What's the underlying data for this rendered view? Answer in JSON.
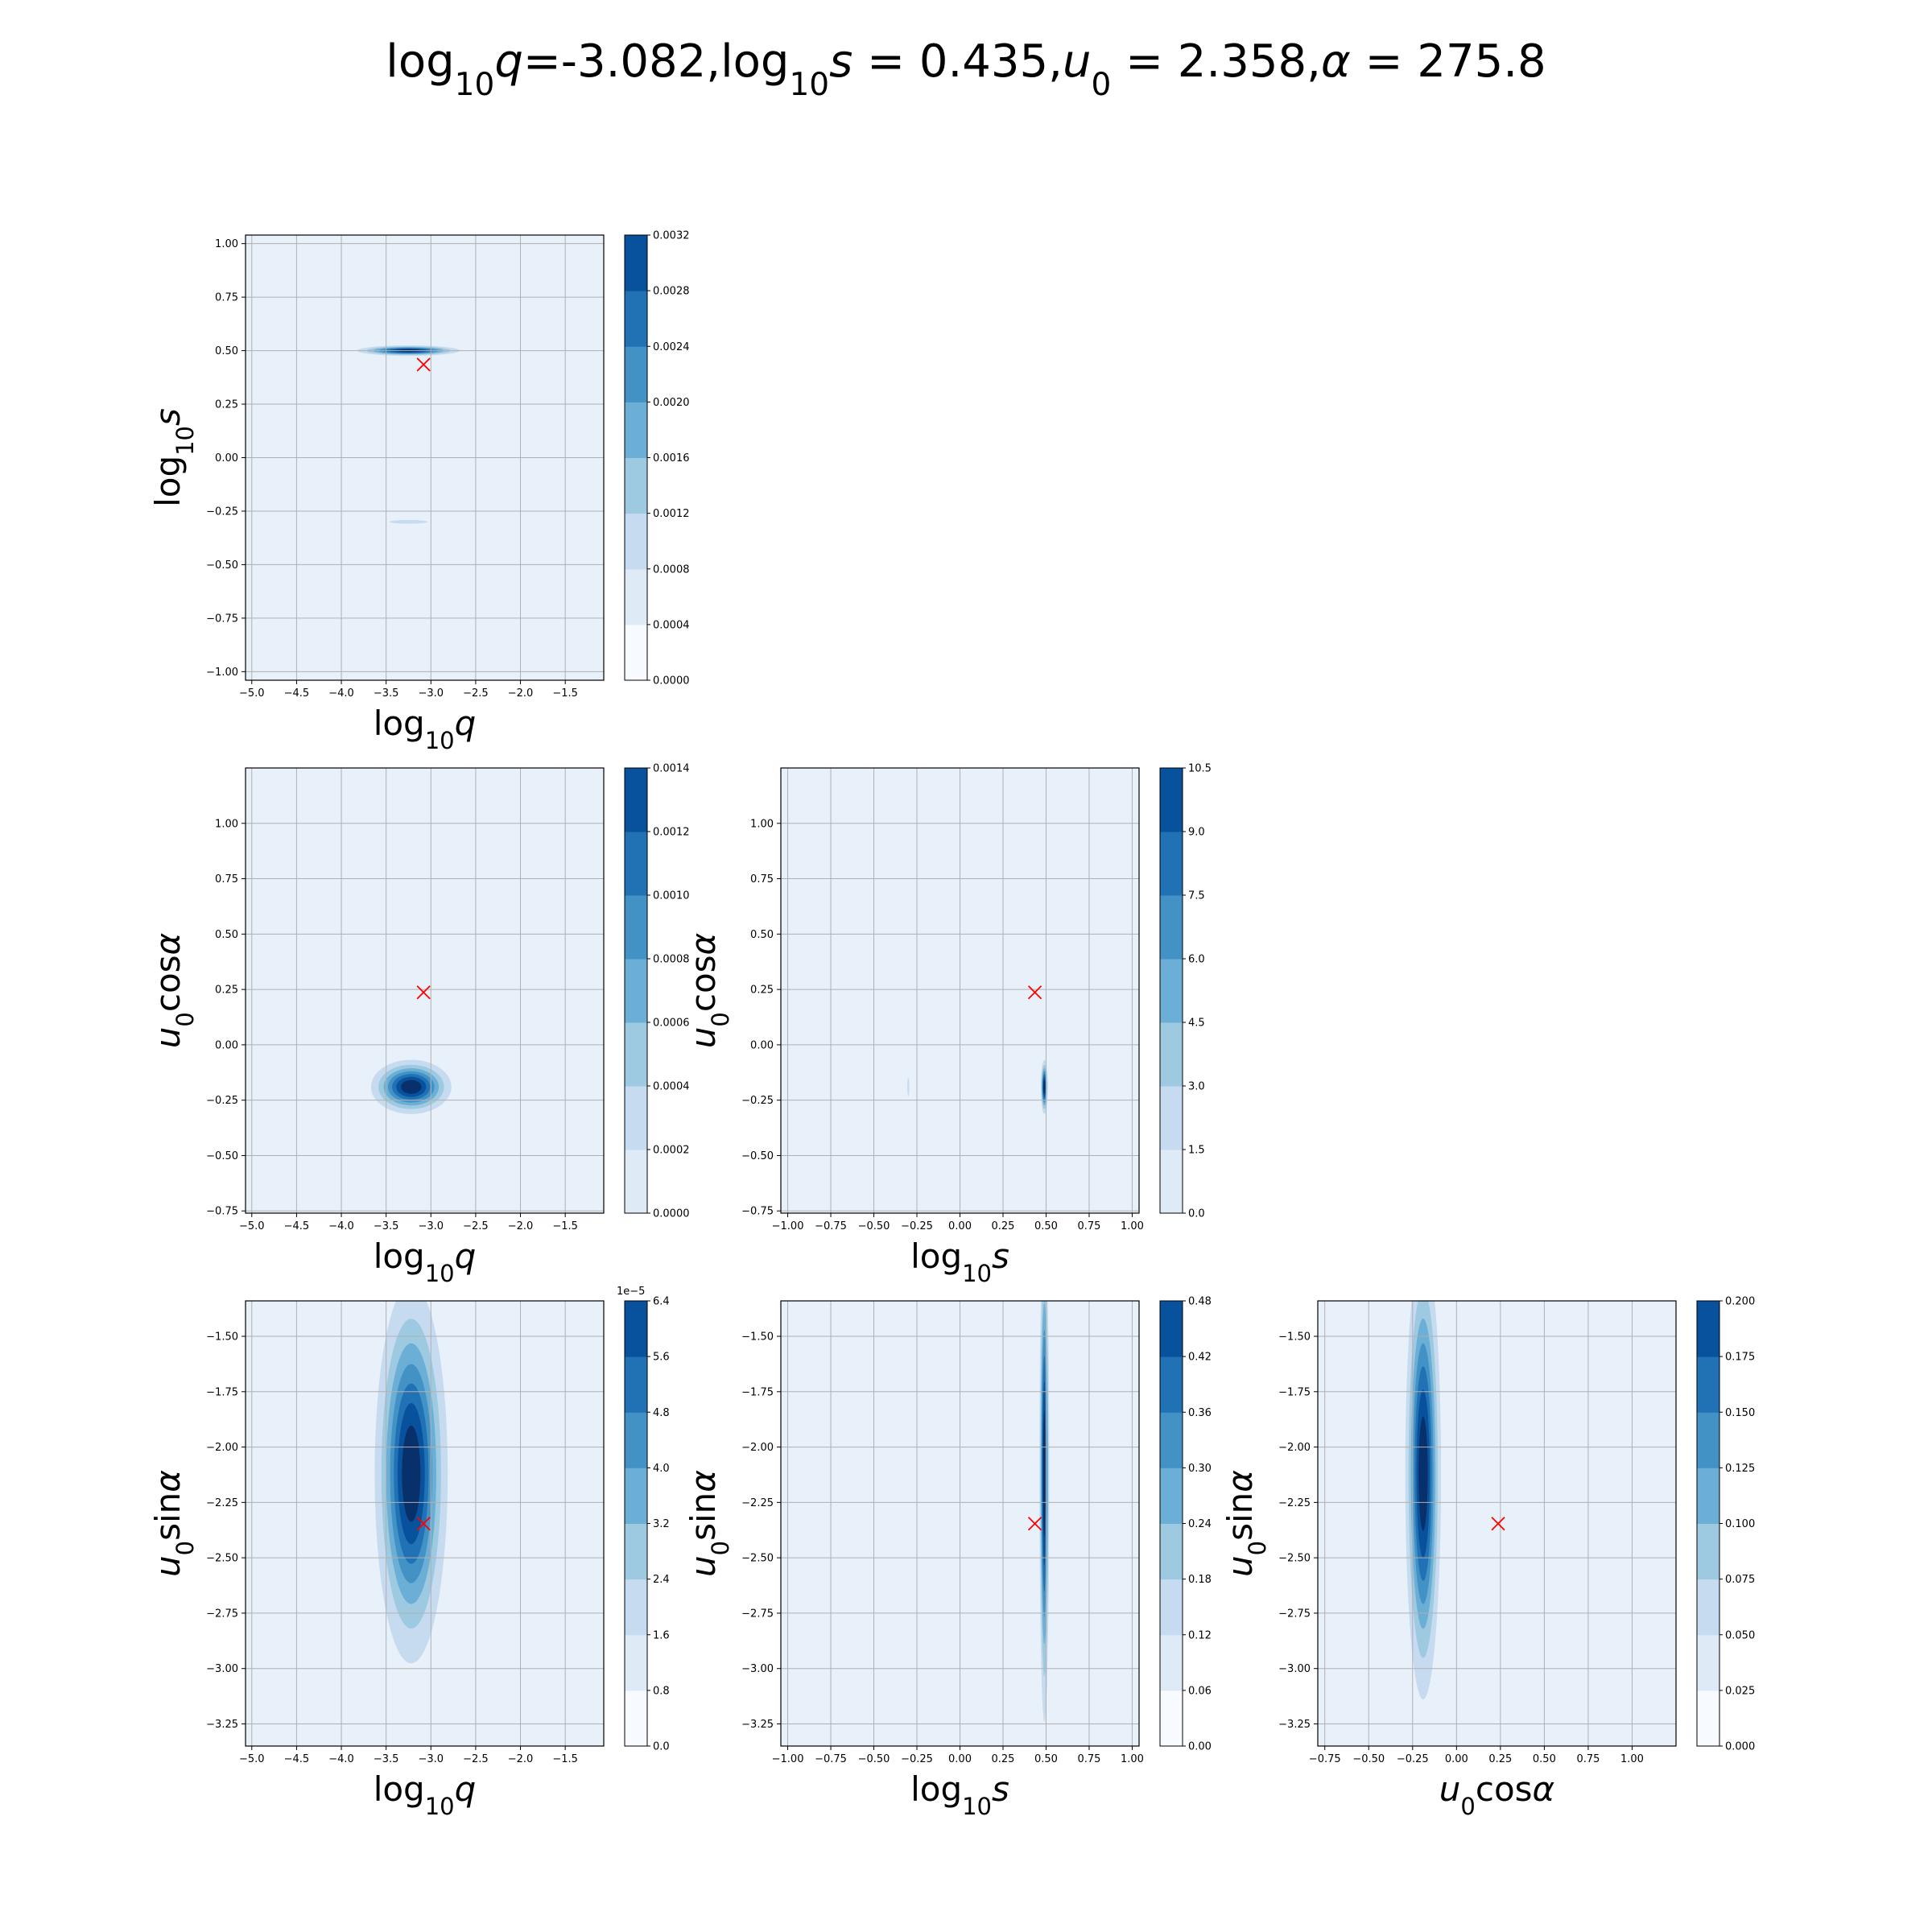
{
  "title": "log10q=-3.082,log10s = 0.435,u0 = 2.358,α = 275.8",
  "title_parts": [
    {
      "t": "log",
      "s": "n"
    },
    {
      "t": "10",
      "s": "sub"
    },
    {
      "t": "q",
      "s": "i"
    },
    {
      "t": "=-3.082,log",
      "s": "n"
    },
    {
      "t": "10",
      "s": "sub"
    },
    {
      "t": "s",
      "s": "i"
    },
    {
      "t": " = 0.435,",
      "s": "n"
    },
    {
      "t": "u",
      "s": "i"
    },
    {
      "t": "0",
      "s": "sub"
    },
    {
      "t": " = 2.358,",
      "s": "n"
    },
    {
      "t": "α",
      "s": "i"
    },
    {
      "t": " = 275.8",
      "s": "n"
    }
  ],
  "labels": {
    "log10q": [
      {
        "t": "log",
        "s": "n"
      },
      {
        "t": "10",
        "s": "sub"
      },
      {
        "t": "q",
        "s": "i"
      }
    ],
    "log10s": [
      {
        "t": "log",
        "s": "n"
      },
      {
        "t": "10",
        "s": "sub"
      },
      {
        "t": "s",
        "s": "i"
      }
    ],
    "u0cos": [
      {
        "t": "u",
        "s": "i"
      },
      {
        "t": "0",
        "s": "sub"
      },
      {
        "t": "cos",
        "s": "n"
      },
      {
        "t": "α",
        "s": "i"
      }
    ],
    "u0sin": [
      {
        "t": "u",
        "s": "i"
      },
      {
        "t": "0",
        "s": "sub"
      },
      {
        "t": "sin",
        "s": "n"
      },
      {
        "t": "α",
        "s": "i"
      }
    ]
  },
  "colors": {
    "levels": [
      "#f7fbff",
      "#deebf7",
      "#c6dbef",
      "#9ecae1",
      "#6baed6",
      "#4292c6",
      "#2171b5",
      "#08519c",
      "#08306b"
    ],
    "background_level": "#e8f1fa",
    "truth_marker": "#ff0000",
    "grid": "#b0b0b0"
  },
  "chart_data": [
    {
      "type": "contour",
      "panel": "log10q-vs-log10s",
      "xlabel_key": "log10q",
      "ylabel_key": "log10s",
      "xlim": [
        -5.07,
        -1.07
      ],
      "ylim": [
        -1.04,
        1.04
      ],
      "xticks": [
        -5.0,
        -4.5,
        -4.0,
        -3.5,
        -3.0,
        -2.5,
        -2.0,
        -1.5
      ],
      "yticks": [
        -1.0,
        -0.75,
        -0.5,
        -0.25,
        0.0,
        0.25,
        0.5,
        0.75,
        1.0
      ],
      "xtick_labels": [
        "−5.0",
        "−4.5",
        "−4.0",
        "−3.5",
        "−3.0",
        "−2.5",
        "−2.0",
        "−1.5"
      ],
      "ytick_labels": [
        "−1.00",
        "−0.75",
        "−0.50",
        "−0.25",
        "0.00",
        "0.25",
        "0.50",
        "0.75",
        "1.00"
      ],
      "colorbar_ticks": [
        "0.0000",
        "0.0004",
        "0.0008",
        "0.0012",
        "0.0016",
        "0.0020",
        "0.0024",
        "0.0028",
        "0.0032"
      ],
      "colorbar_exponent": "",
      "blobs": [
        {
          "cx": -3.25,
          "cy": 0.5,
          "sx": 0.28,
          "sy": 0.012,
          "peak": 1.0
        },
        {
          "cx": -3.25,
          "cy": -0.3,
          "sx": 0.2,
          "sy": 0.008,
          "peak": 0.22
        }
      ],
      "truth": {
        "x": -3.082,
        "y": 0.435
      }
    },
    {
      "type": "contour",
      "panel": "log10q-vs-u0cos",
      "xlabel_key": "log10q",
      "ylabel_key": "u0cos",
      "xlim": [
        -5.07,
        -1.07
      ],
      "ylim": [
        -0.76,
        1.25
      ],
      "xticks": [
        -5.0,
        -4.5,
        -4.0,
        -3.5,
        -3.0,
        -2.5,
        -2.0,
        -1.5
      ],
      "yticks": [
        -0.75,
        -0.5,
        -0.25,
        0.0,
        0.25,
        0.5,
        0.75,
        1.0
      ],
      "xtick_labels": [
        "−5.0",
        "−4.5",
        "−4.0",
        "−3.5",
        "−3.0",
        "−2.5",
        "−2.0",
        "−1.5"
      ],
      "ytick_labels": [
        "−0.75",
        "−0.50",
        "−0.25",
        "0.00",
        "0.25",
        "0.50",
        "0.75",
        "1.00"
      ],
      "colorbar_ticks": [
        "0.0000",
        "0.0002",
        "0.0004",
        "0.0006",
        "0.0008",
        "0.0010",
        "0.0012",
        "0.0014"
      ],
      "colorbar_exponent": "",
      "blobs": [
        {
          "cx": -3.22,
          "cy": -0.19,
          "sx": 0.22,
          "sy": 0.06,
          "peak": 1.0
        }
      ],
      "truth": {
        "x": -3.082,
        "y": 0.237
      }
    },
    {
      "type": "contour",
      "panel": "log10s-vs-u0cos",
      "xlabel_key": "log10s",
      "ylabel_key": "u0cos",
      "xlim": [
        -1.04,
        1.04
      ],
      "ylim": [
        -0.76,
        1.25
      ],
      "xticks": [
        -1.0,
        -0.75,
        -0.5,
        -0.25,
        0.0,
        0.25,
        0.5,
        0.75,
        1.0
      ],
      "yticks": [
        -0.75,
        -0.5,
        -0.25,
        0.0,
        0.25,
        0.5,
        0.75,
        1.0
      ],
      "xtick_labels": [
        "−1.00",
        "−0.75",
        "−0.50",
        "−0.25",
        "0.00",
        "0.25",
        "0.50",
        "0.75",
        "1.00"
      ],
      "ytick_labels": [
        "−0.75",
        "−0.50",
        "−0.25",
        "0.00",
        "0.25",
        "0.50",
        "0.75",
        "1.00"
      ],
      "colorbar_ticks": [
        "0.0",
        "1.5",
        "3.0",
        "4.5",
        "6.0",
        "7.5",
        "9.0",
        "10.5"
      ],
      "colorbar_exponent": "",
      "blobs": [
        {
          "cx": 0.49,
          "cy": -0.19,
          "sx": 0.01,
          "sy": 0.06,
          "peak": 1.0
        },
        {
          "cx": -0.3,
          "cy": -0.19,
          "sx": 0.006,
          "sy": 0.05,
          "peak": 0.18
        }
      ],
      "truth": {
        "x": 0.435,
        "y": 0.237
      }
    },
    {
      "type": "contour",
      "panel": "log10q-vs-u0sin",
      "xlabel_key": "log10q",
      "ylabel_key": "u0sin",
      "xlim": [
        -5.07,
        -1.07
      ],
      "ylim": [
        -3.35,
        -1.34
      ],
      "xticks": [
        -5.0,
        -4.5,
        -4.0,
        -3.5,
        -3.0,
        -2.5,
        -2.0,
        -1.5
      ],
      "yticks": [
        -3.25,
        -3.0,
        -2.75,
        -2.5,
        -2.25,
        -2.0,
        -1.75,
        -1.5
      ],
      "xtick_labels": [
        "−5.0",
        "−4.5",
        "−4.0",
        "−3.5",
        "−3.0",
        "−2.5",
        "−2.0",
        "−1.5"
      ],
      "ytick_labels": [
        "−3.25",
        "−3.00",
        "−2.75",
        "−2.50",
        "−2.25",
        "−2.00",
        "−1.75",
        "−1.50"
      ],
      "colorbar_ticks": [
        "0.0",
        "0.8",
        "1.6",
        "2.4",
        "3.2",
        "4.0",
        "4.8",
        "5.6",
        "6.4"
      ],
      "colorbar_exponent": "1e−5",
      "blobs": [
        {
          "cx": -3.22,
          "cy": -2.12,
          "sx": 0.2,
          "sy": 0.42,
          "peak": 1.0
        }
      ],
      "truth": {
        "x": -3.082,
        "y": -2.346
      }
    },
    {
      "type": "contour",
      "panel": "log10s-vs-u0sin",
      "xlabel_key": "log10s",
      "ylabel_key": "u0sin",
      "xlim": [
        -1.04,
        1.04
      ],
      "ylim": [
        -3.35,
        -1.34
      ],
      "xticks": [
        -1.0,
        -0.75,
        -0.5,
        -0.25,
        0.0,
        0.25,
        0.5,
        0.75,
        1.0
      ],
      "yticks": [
        -3.25,
        -3.0,
        -2.75,
        -2.5,
        -2.25,
        -2.0,
        -1.75,
        -1.5
      ],
      "xtick_labels": [
        "−1.00",
        "−0.75",
        "−0.50",
        "−0.25",
        "0.00",
        "0.25",
        "0.50",
        "0.75",
        "1.00"
      ],
      "ytick_labels": [
        "−3.25",
        "−3.00",
        "−2.75",
        "−2.50",
        "−2.25",
        "−2.00",
        "−1.75",
        "−1.50"
      ],
      "colorbar_ticks": [
        "0.00",
        "0.06",
        "0.12",
        "0.18",
        "0.24",
        "0.30",
        "0.36",
        "0.42",
        "0.48"
      ],
      "colorbar_exponent": "",
      "blobs": [
        {
          "cx": 0.49,
          "cy": -2.12,
          "sx": 0.014,
          "sy": 0.55,
          "peak": 1.0
        },
        {
          "cx": 0.54,
          "cy": -2.12,
          "sx": 0.01,
          "sy": 0.28,
          "peak": 0.12
        },
        {
          "cx": -0.3,
          "cy": -2.12,
          "sx": 0.007,
          "sy": 0.4,
          "peak": 0.12
        }
      ],
      "truth": {
        "x": 0.435,
        "y": -2.346
      }
    },
    {
      "type": "contour",
      "panel": "u0cos-vs-u0sin",
      "xlabel_key": "u0cos",
      "ylabel_key": "u0sin",
      "xlim": [
        -0.79,
        1.25
      ],
      "ylim": [
        -3.35,
        -1.34
      ],
      "xticks": [
        -0.75,
        -0.5,
        -0.25,
        0.0,
        0.25,
        0.5,
        0.75,
        1.0
      ],
      "yticks": [
        -3.25,
        -3.0,
        -2.75,
        -2.5,
        -2.25,
        -2.0,
        -1.75,
        -1.5
      ],
      "xtick_labels": [
        "−0.75",
        "−0.50",
        "−0.25",
        "0.00",
        "0.25",
        "0.50",
        "0.75",
        "1.00"
      ],
      "ytick_labels": [
        "−3.25",
        "−3.00",
        "−2.75",
        "−2.50",
        "−2.25",
        "−2.00",
        "−1.75",
        "−1.50"
      ],
      "colorbar_ticks": [
        "0.000",
        "0.025",
        "0.050",
        "0.075",
        "0.100",
        "0.125",
        "0.150",
        "0.175",
        "0.200"
      ],
      "colorbar_exponent": "",
      "blobs": [
        {
          "cx": -0.19,
          "cy": -2.12,
          "sx": 0.05,
          "sy": 0.5,
          "peak": 1.0
        }
      ],
      "truth": {
        "x": 0.237,
        "y": -2.346
      }
    }
  ]
}
